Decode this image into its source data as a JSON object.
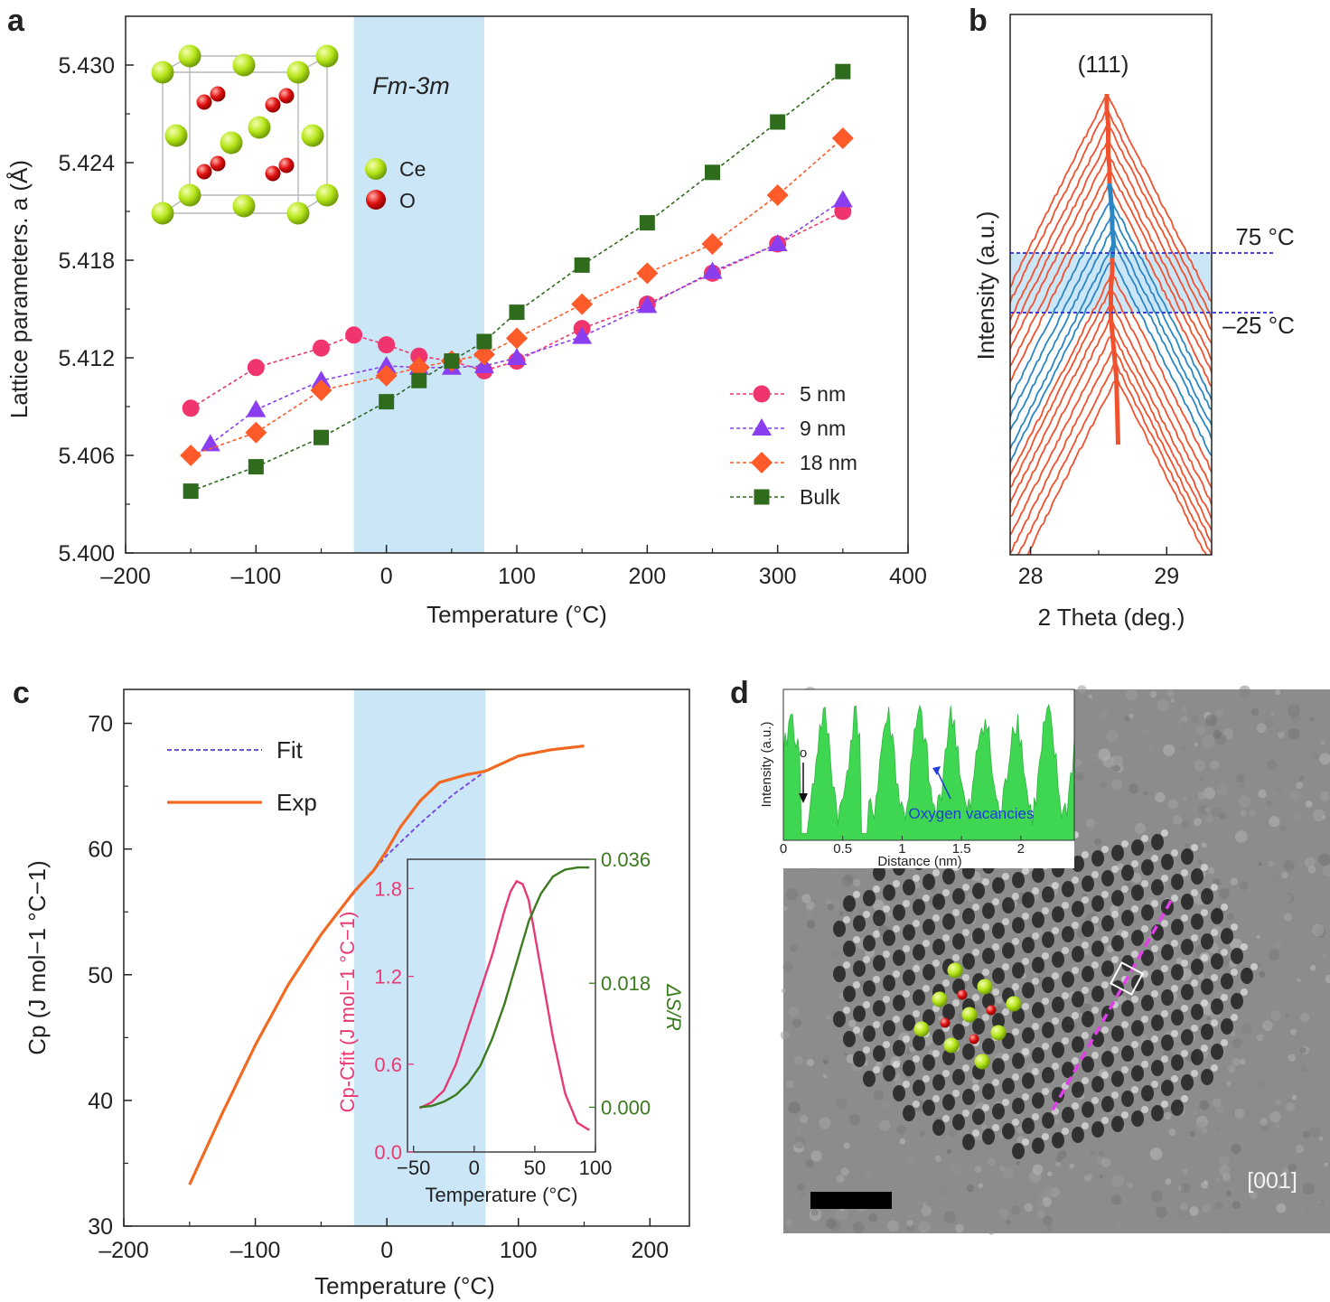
{
  "colors": {
    "s5nm": "#f0356e",
    "s9nm": "#8a3ef0",
    "s18nm": "#ff5a2a",
    "bulk": "#2e6b1d",
    "band": "#cbe6f7",
    "exp": "#f26a21",
    "fit": "#7b4ce0",
    "diff": "#e83a72",
    "entropy": "#3b7a1e",
    "warm": "#f0512e",
    "cool": "#2b86c4",
    "ce": "#b6e51a",
    "o": "#e01010",
    "profile": "#3fd651"
  },
  "chart_data": [
    {
      "id": "a",
      "type": "line",
      "panel_label": "a",
      "xlabel": "Temperature (°C)",
      "ylabel": "Lattice parameters. a (Å)",
      "xlim": [
        -200,
        400
      ],
      "ylim": [
        5.4,
        5.433
      ],
      "xticks": [
        "–200",
        "–100",
        "0",
        "100",
        "200",
        "300",
        "400"
      ],
      "yticks": [
        "5.400",
        "5.406",
        "5.412",
        "5.418",
        "5.424",
        "5.430"
      ],
      "shaded_x": [
        -25,
        75
      ],
      "annotation": "Fm-3m",
      "structure_legend": [
        "Ce",
        "O"
      ],
      "legend_position": "bottom-right",
      "series": [
        {
          "name": "5 nm",
          "marker": "circle",
          "x": [
            -150,
            -100,
            -50,
            -25,
            0,
            25,
            50,
            75,
            100,
            150,
            200,
            250,
            300,
            350
          ],
          "y": [
            5.4089,
            5.4114,
            5.4126,
            5.4134,
            5.4128,
            5.4121,
            5.4118,
            5.4112,
            5.4118,
            5.4138,
            5.4153,
            5.4172,
            5.419,
            5.421
          ]
        },
        {
          "name": "9 nm",
          "marker": "triangle",
          "x": [
            -135,
            -100,
            -50,
            0,
            25,
            50,
            75,
            100,
            150,
            200,
            250,
            300,
            350
          ],
          "y": [
            5.4067,
            5.4088,
            5.4106,
            5.4115,
            5.4114,
            5.4114,
            5.4115,
            5.412,
            5.4133,
            5.4152,
            5.4173,
            5.419,
            5.4217
          ]
        },
        {
          "name": "18 nm",
          "marker": "diamond",
          "x": [
            -150,
            -100,
            -50,
            0,
            25,
            50,
            75,
            100,
            150,
            200,
            250,
            300,
            350
          ],
          "y": [
            5.406,
            5.4074,
            5.41,
            5.4109,
            5.4114,
            5.4118,
            5.4122,
            5.4132,
            5.4153,
            5.4172,
            5.419,
            5.422,
            5.4255
          ]
        },
        {
          "name": "Bulk",
          "marker": "square",
          "x": [
            -150,
            -100,
            -50,
            0,
            25,
            50,
            75,
            100,
            150,
            200,
            250,
            300,
            350
          ],
          "y": [
            5.4038,
            5.4053,
            5.4071,
            5.4093,
            5.4106,
            5.4118,
            5.413,
            5.4148,
            5.4177,
            5.4203,
            5.4234,
            5.4265,
            5.4296
          ]
        }
      ]
    },
    {
      "id": "b",
      "type": "line",
      "panel_label": "b",
      "xlabel": "2 Theta (deg.)",
      "ylabel": "Intensity (a.u.)",
      "xlim": [
        27.85,
        29.33
      ],
      "xticks": [
        "28",
        "29"
      ],
      "peak_label": "(111)",
      "temperature_marks": [
        "75 °C",
        "–25 °C"
      ],
      "stack_count": 20,
      "shaded_rows": [
        6,
        10
      ],
      "peak_positions": [
        28.56,
        28.56,
        28.57,
        28.57,
        28.57,
        28.58,
        28.58,
        28.59,
        28.6,
        28.6,
        28.61,
        28.6,
        28.6,
        28.59,
        28.59,
        28.59,
        28.6,
        28.61,
        28.62,
        28.63
      ]
    },
    {
      "id": "c",
      "type": "line",
      "panel_label": "c",
      "xlabel": "Temperature (°C)",
      "ylabel": "Cp (J mol−1 °C−1)",
      "xlim": [
        -200,
        230
      ],
      "ylim": [
        30,
        72.7
      ],
      "xticks": [
        "–200",
        "–100",
        "0",
        "100",
        "200"
      ],
      "yticks": [
        "30",
        "40",
        "50",
        "60",
        "70"
      ],
      "shaded_x": [
        -25,
        75
      ],
      "legend_position": "top-left",
      "series": [
        {
          "name": "Fit",
          "style": "dashed",
          "x": [
            -150,
            -125,
            -100,
            -75,
            -50,
            -25,
            0,
            25,
            50,
            75,
            100,
            125,
            150
          ],
          "y": [
            33.3,
            39.0,
            44.4,
            49.2,
            53.2,
            56.5,
            59.5,
            62.0,
            64.3,
            66.2,
            67.4,
            67.9,
            68.2
          ]
        },
        {
          "name": "Exp",
          "style": "solid",
          "x": [
            -150,
            -125,
            -100,
            -75,
            -50,
            -25,
            -10,
            0,
            10,
            25,
            40,
            50,
            60,
            75,
            100,
            125,
            150
          ],
          "y": [
            33.3,
            39.0,
            44.4,
            49.2,
            53.2,
            56.6,
            58.3,
            59.9,
            61.7,
            63.8,
            65.3,
            65.6,
            65.9,
            66.2,
            67.4,
            67.9,
            68.2
          ]
        }
      ],
      "inset": {
        "xlabel": "Temperature (°C)",
        "ylabel_left": "Cp-Cfit (J mol−1 °C−1)",
        "ylabel_right": "ΔS/R",
        "xlim": [
          -55,
          100
        ],
        "ylim_left": [
          0,
          2.0
        ],
        "ylim_right": [
          -0.0065,
          0.036
        ],
        "xticks": [
          "−50",
          "0",
          "50",
          "100"
        ],
        "yticks_left": [
          "0.0",
          "0.6",
          "1.2",
          "1.8"
        ],
        "yticks_right": [
          "0.000",
          "0.018",
          "0.036"
        ],
        "series": [
          {
            "name": "Cp-Cfit",
            "axis": "left",
            "x": [
              -45,
              -35,
              -25,
              -15,
              -5,
              5,
              15,
              25,
              30,
              35,
              40,
              45,
              55,
              65,
              75,
              85,
              95
            ],
            "y": [
              0.3,
              0.34,
              0.42,
              0.6,
              0.85,
              1.1,
              1.35,
              1.65,
              1.78,
              1.85,
              1.83,
              1.72,
              1.25,
              0.78,
              0.4,
              0.2,
              0.15
            ]
          },
          {
            "name": "ΔS/R",
            "axis": "right",
            "x": [
              -45,
              -35,
              -25,
              -15,
              -5,
              5,
              15,
              25,
              35,
              45,
              55,
              65,
              75,
              85,
              95
            ],
            "y": [
              0.0,
              0.0002,
              0.0008,
              0.0018,
              0.0035,
              0.006,
              0.01,
              0.015,
              0.021,
              0.027,
              0.031,
              0.0335,
              0.0345,
              0.0348,
              0.0348
            ]
          }
        ]
      }
    },
    {
      "id": "d",
      "type": "line",
      "panel_label": "d",
      "inset_xlabel": "Distance (nm)",
      "inset_ylabel": "Intensity (a.u.)",
      "inset_xlim": [
        0,
        2.45
      ],
      "inset_xticks": [
        "0",
        "0.5",
        "1",
        "1.5",
        "2"
      ],
      "inset_annotation": "Oxygen vacancies",
      "inset_marker": "o",
      "direction_label": "[001]"
    }
  ]
}
